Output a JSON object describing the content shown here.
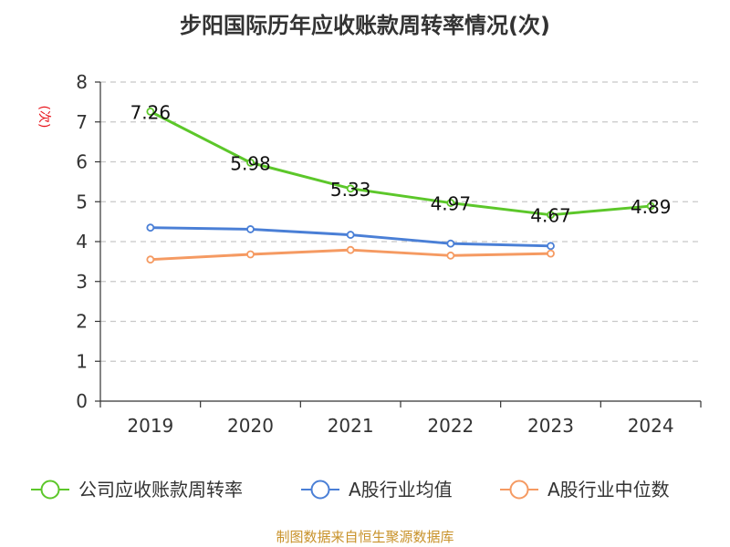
{
  "chart_data": {
    "type": "line",
    "title": "步阳国际历年应收账款周转率情况(次)",
    "ylabel": "(次)",
    "xlabel": "",
    "categories": [
      "2019",
      "2020",
      "2021",
      "2022",
      "2023",
      "2024"
    ],
    "ylim": [
      0,
      8
    ],
    "yticks": [
      0,
      1,
      2,
      3,
      4,
      5,
      6,
      7,
      8
    ],
    "grid": true,
    "legend_position": "bottom",
    "series": [
      {
        "name": "公司应收账款周转率",
        "color": "#5cc72a",
        "values": [
          7.26,
          5.98,
          5.33,
          4.97,
          4.67,
          4.89
        ],
        "labels": [
          "7.26",
          "5.98",
          "5.33",
          "4.97",
          "4.67",
          "4.89"
        ]
      },
      {
        "name": "A股行业均值",
        "color": "#4a7fd6",
        "values": [
          4.35,
          4.31,
          4.17,
          3.95,
          3.89,
          null
        ]
      },
      {
        "name": "A股行业中位数",
        "color": "#f59a62",
        "values": [
          3.55,
          3.68,
          3.79,
          3.65,
          3.7,
          null
        ]
      }
    ]
  },
  "source": "制图数据来自恒生聚源数据库"
}
